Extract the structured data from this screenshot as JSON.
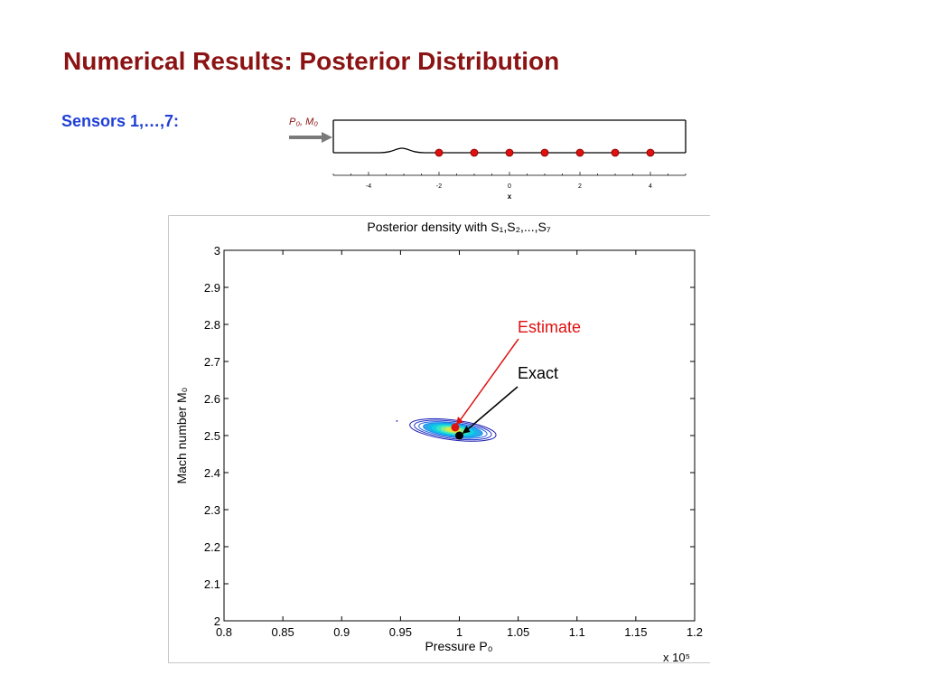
{
  "slide": {
    "title": "Numerical Results: Posterior Distribution",
    "sensor_label": "Sensors 1,…,7:"
  },
  "colors": {
    "title": "#8b1313",
    "sensor_label": "#1f3fd6",
    "sensor_dot": "#e01010",
    "estimate": "#e01010",
    "exact": "#000000"
  },
  "nozzle": {
    "inlet_label": "P₀, M₀",
    "xlabel": "x",
    "ticks": [
      "-4",
      "-2",
      "0",
      "2",
      "4"
    ],
    "xlim": [
      -5,
      5
    ],
    "sensor_x": [
      -2,
      -1,
      0,
      1,
      2,
      3,
      4
    ]
  },
  "chart_data": {
    "type": "contour",
    "title": "Posterior density with S₁,S₂,...,S₇",
    "xlabel": "Pressure P₀",
    "ylabel": "Mach number M₀",
    "x_multiplier": "x 10⁵",
    "xlim": [
      0.8,
      1.2
    ],
    "ylim": [
      2.0,
      3.0
    ],
    "xticks": [
      "0.8",
      "0.85",
      "0.9",
      "0.95",
      "1",
      "1.05",
      "1.1",
      "1.15",
      "1.2"
    ],
    "yticks": [
      "2",
      "2.1",
      "2.2",
      "2.3",
      "2.4",
      "2.5",
      "2.6",
      "2.7",
      "2.8",
      "2.9",
      "3"
    ],
    "contour_center": [
      0.993,
      2.515
    ],
    "estimate": {
      "label": "Estimate",
      "x": 0.9965,
      "y": 2.522
    },
    "exact": {
      "label": "Exact",
      "x": 1.0,
      "y": 2.5
    }
  }
}
